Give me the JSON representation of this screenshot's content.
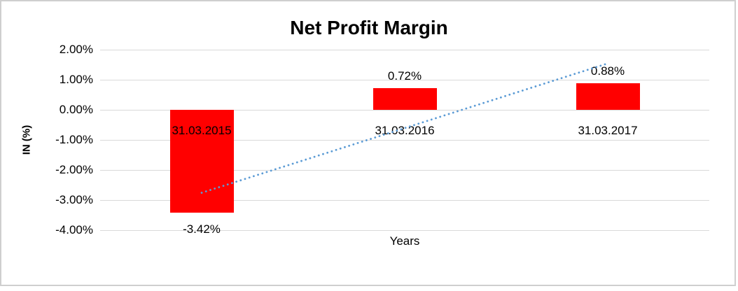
{
  "chart_data": {
    "type": "bar",
    "title": "Net Profit Margin",
    "xlabel": "Years",
    "ylabel": "IN (%)",
    "categories": [
      "31.03.2015",
      "31.03.2016",
      "31.03.2017"
    ],
    "values": [
      -3.42,
      0.72,
      0.88
    ],
    "value_labels": [
      "-3.42%",
      "0.72%",
      "0.88%"
    ],
    "y_ticks": [
      {
        "label": "2.00%",
        "value": 2
      },
      {
        "label": "1.00%",
        "value": 1
      },
      {
        "label": "0.00%",
        "value": 0
      },
      {
        "label": "-1.00%",
        "value": -1
      },
      {
        "label": "-2.00%",
        "value": -2
      },
      {
        "label": "-3.00%",
        "value": -3
      },
      {
        "label": "-4.00%",
        "value": -4
      }
    ],
    "ylim": [
      -4,
      2
    ],
    "grid": true,
    "legend": false,
    "trendline": {
      "type": "linear",
      "style": "dotted",
      "color": "#5B9BD5"
    },
    "colors": {
      "bar": "#FF0000",
      "gridline": "#D9D9D9",
      "text": "#000000",
      "border": "#CFCFCF",
      "background": "#FFFFFF"
    }
  }
}
